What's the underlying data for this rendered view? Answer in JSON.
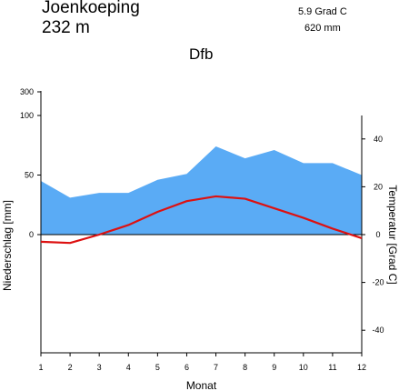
{
  "header": {
    "station": "Joenkoeping",
    "elevation": "232  m",
    "temp_summary": "5.9 Grad C",
    "prec_summary": "620 mm",
    "climate_class": "Dfb"
  },
  "chart_data": {
    "type": "area",
    "xlabel": "Monat",
    "ylabel_left": "Niederschlag [mm]",
    "ylabel_right": "Temperatur [Grad C]",
    "categories": [
      "1",
      "2",
      "3",
      "4",
      "5",
      "6",
      "7",
      "8",
      "9",
      "10",
      "11",
      "12"
    ],
    "left_ticks": [
      "300",
      "100",
      "50",
      "0"
    ],
    "right_ticks": [
      "40",
      "20",
      "0",
      "-20",
      "-40"
    ],
    "series": [
      {
        "name": "Niederschlag",
        "kind": "area",
        "color": "#5aabf5",
        "axis": "left",
        "values": [
          45,
          31,
          35,
          35,
          46,
          51,
          74,
          64,
          71,
          60,
          60,
          50
        ]
      },
      {
        "name": "Temperatur",
        "kind": "line",
        "color": "#dd1111",
        "axis": "right",
        "values": [
          -3,
          -3.5,
          0,
          4,
          9.5,
          14,
          16,
          15,
          11,
          7,
          2.5,
          -1.5
        ]
      }
    ],
    "grid": false
  }
}
